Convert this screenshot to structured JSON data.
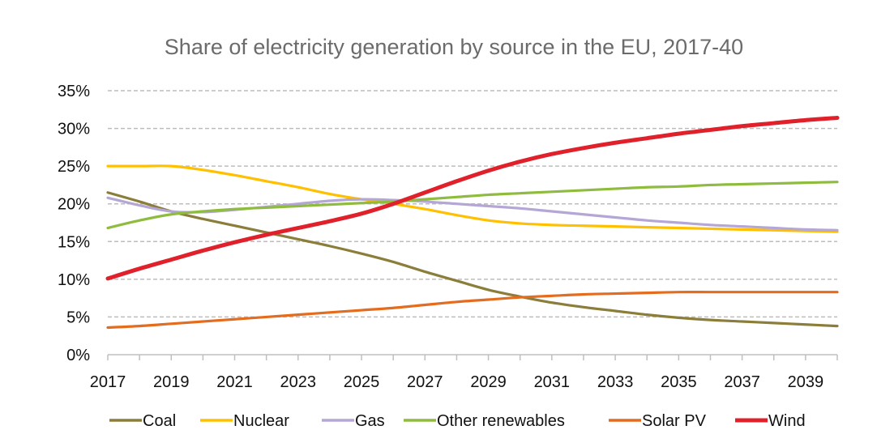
{
  "chart_data": {
    "type": "line",
    "title": "Share of electricity generation by source in the EU, 2017-40",
    "xlabel": "",
    "ylabel": "",
    "x_tick_labels": [
      "2017",
      "2019",
      "2021",
      "2023",
      "2025",
      "2027",
      "2029",
      "2031",
      "2033",
      "2035",
      "2037",
      "2039"
    ],
    "y_tick_labels": [
      "0%",
      "5%",
      "10%",
      "15%",
      "20%",
      "25%",
      "30%",
      "35%"
    ],
    "xlim": [
      2017,
      2040
    ],
    "ylim": [
      0,
      35
    ],
    "grid": "horizontal dashed",
    "legend_position": "bottom",
    "x": [
      2017,
      2018,
      2019,
      2020,
      2021,
      2022,
      2023,
      2024,
      2025,
      2026,
      2027,
      2028,
      2029,
      2030,
      2031,
      2032,
      2033,
      2034,
      2035,
      2036,
      2037,
      2038,
      2039,
      2040
    ],
    "series": [
      {
        "name": "Coal",
        "color": "#8b7d3a",
        "values": [
          21.5,
          20.3,
          19.0,
          18.0,
          17.1,
          16.2,
          15.3,
          14.4,
          13.4,
          12.3,
          11.0,
          9.8,
          8.6,
          7.7,
          6.9,
          6.3,
          5.8,
          5.3,
          4.9,
          4.6,
          4.4,
          4.2,
          4.0,
          3.8
        ]
      },
      {
        "name": "Nuclear",
        "color": "#ffc000",
        "values": [
          25.0,
          25.0,
          25.0,
          24.5,
          23.8,
          23.0,
          22.2,
          21.3,
          20.6,
          20.0,
          19.3,
          18.5,
          17.8,
          17.4,
          17.2,
          17.1,
          17.0,
          16.9,
          16.8,
          16.7,
          16.6,
          16.5,
          16.4,
          16.3
        ]
      },
      {
        "name": "Gas",
        "color": "#b4a7d6",
        "values": [
          20.8,
          19.8,
          19.0,
          18.9,
          19.2,
          19.6,
          20.0,
          20.4,
          20.6,
          20.5,
          20.3,
          20.0,
          19.7,
          19.4,
          19.0,
          18.6,
          18.2,
          17.8,
          17.5,
          17.2,
          17.0,
          16.8,
          16.6,
          16.5
        ]
      },
      {
        "name": "Other renewables",
        "color": "#8fbc3f",
        "values": [
          16.8,
          17.8,
          18.6,
          19.0,
          19.3,
          19.5,
          19.7,
          19.9,
          20.1,
          20.3,
          20.6,
          20.9,
          21.2,
          21.4,
          21.6,
          21.8,
          22.0,
          22.2,
          22.3,
          22.5,
          22.6,
          22.7,
          22.8,
          22.9
        ]
      },
      {
        "name": "Solar PV",
        "color": "#e36c1e",
        "values": [
          3.6,
          3.8,
          4.1,
          4.4,
          4.7,
          5.0,
          5.3,
          5.6,
          5.9,
          6.2,
          6.6,
          7.0,
          7.3,
          7.6,
          7.8,
          8.0,
          8.1,
          8.2,
          8.3,
          8.3,
          8.3,
          8.3,
          8.3,
          8.3
        ]
      },
      {
        "name": "Wind",
        "color": "#e0202a",
        "values": [
          10.1,
          11.4,
          12.6,
          13.8,
          14.9,
          15.9,
          16.8,
          17.7,
          18.7,
          20.0,
          21.5,
          23.0,
          24.4,
          25.6,
          26.6,
          27.4,
          28.1,
          28.7,
          29.3,
          29.8,
          30.3,
          30.7,
          31.1,
          31.4
        ]
      }
    ]
  }
}
